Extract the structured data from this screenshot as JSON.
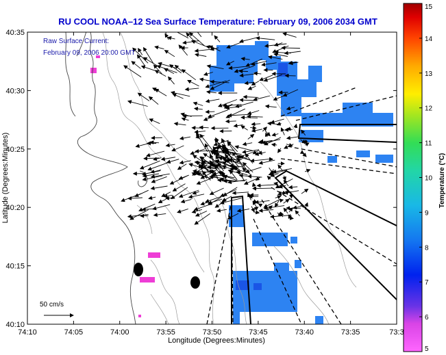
{
  "title": "RU COOL  NOAA–12  Sea Surface Temperature:  February 09, 2006 2034 GMT",
  "inset": {
    "line1": "Raw Surface Current:",
    "line2": "February 09, 2006 20:00 GMT"
  },
  "axes": {
    "xlabel": "Longitude (Degrees:Minutes)",
    "ylabel": "Latitude (Degrees:Minutes)",
    "x_ticks": [
      "74:10",
      "74:05",
      "74:00",
      "73:55",
      "73:50",
      "73:45",
      "73:40",
      "73:35",
      "73:3"
    ],
    "y_ticks": [
      "40:35",
      "40:30",
      "40:25",
      "40:20",
      "40:15",
      "40:10"
    ]
  },
  "scale_label": "50 cm/s",
  "colorbar": {
    "label": "Temperature (°C)",
    "ticks": [
      "15",
      "14",
      "13",
      "12",
      "11",
      "10",
      "9",
      "8",
      "7",
      "6",
      "5"
    ],
    "min": 5,
    "max": 15
  },
  "colors": {
    "title_text": "#0000cc",
    "inset_text": "#1a1aaa",
    "sst_patch": "#2d83f2",
    "sst_patch_dark": "#1a55e6",
    "cold_patch": "#ee3dd6"
  }
}
